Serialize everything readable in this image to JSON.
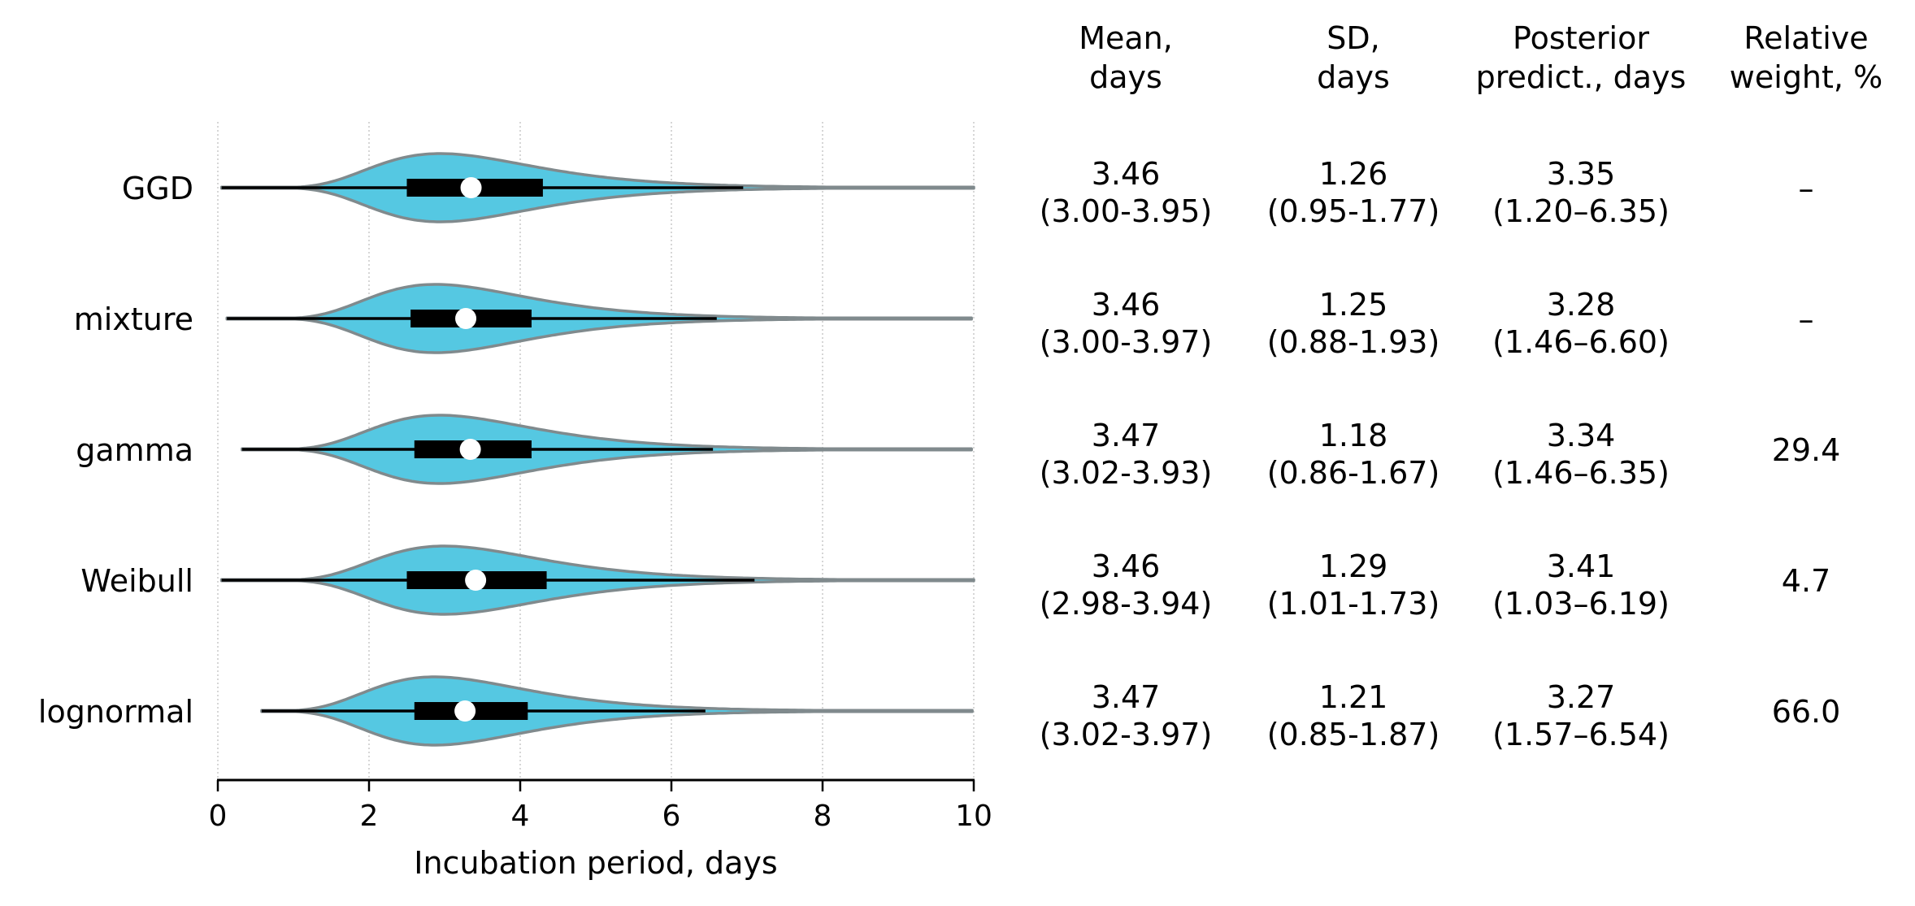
{
  "chart_data": {
    "type": "violin",
    "xlabel": "Incubation period, days",
    "xlim": [
      0,
      10
    ],
    "xticks": [
      0,
      2,
      4,
      6,
      8,
      10
    ],
    "xtick_labels": [
      "0",
      "2",
      "4",
      "6",
      "8",
      "10"
    ],
    "grid": "vertical dotted at x ticks",
    "violin_color": "#55c8e2",
    "violin_edge_color": "#808a8d",
    "box_color": "#000000",
    "median_color": "#ffffff",
    "models": [
      {
        "name": "GGD",
        "min": 0.05,
        "q1": 2.5,
        "median": 3.35,
        "q3": 4.3,
        "whisker_high": 6.95
      },
      {
        "name": "mixture",
        "min": 0.12,
        "q1": 2.55,
        "median": 3.28,
        "q3": 4.15,
        "whisker_high": 6.6
      },
      {
        "name": "gamma",
        "min": 0.32,
        "q1": 2.6,
        "median": 3.34,
        "q3": 4.15,
        "whisker_high": 6.55
      },
      {
        "name": "Weibull",
        "min": 0.05,
        "q1": 2.5,
        "median": 3.41,
        "q3": 4.35,
        "whisker_high": 7.1
      },
      {
        "name": "lognormal",
        "min": 0.58,
        "q1": 2.6,
        "median": 3.27,
        "q3": 4.1,
        "whisker_high": 6.45
      }
    ]
  },
  "table": {
    "headers": [
      [
        "Mean,",
        "days"
      ],
      [
        "SD,",
        "days"
      ],
      [
        "Posterior",
        "predict., days"
      ],
      [
        "Relative",
        "weight, %"
      ]
    ],
    "rows": [
      {
        "model": "GGD",
        "mean": "3.46",
        "mean_ci": "(3.00-3.95)",
        "sd": "1.26",
        "sd_ci": "(0.95-1.77)",
        "pred": "3.35",
        "pred_ci": "(1.20–6.35)",
        "weight": "–"
      },
      {
        "model": "mixture",
        "mean": "3.46",
        "mean_ci": "(3.00-3.97)",
        "sd": "1.25",
        "sd_ci": "(0.88-1.93)",
        "pred": "3.28",
        "pred_ci": "(1.46–6.60)",
        "weight": "–"
      },
      {
        "model": "gamma",
        "mean": "3.47",
        "mean_ci": "(3.02-3.93)",
        "sd": "1.18",
        "sd_ci": "(0.86-1.67)",
        "pred": "3.34",
        "pred_ci": "(1.46–6.35)",
        "weight": "29.4"
      },
      {
        "model": "Weibull",
        "mean": "3.46",
        "mean_ci": "(2.98-3.94)",
        "sd": "1.29",
        "sd_ci": "(1.01-1.73)",
        "pred": "3.41",
        "pred_ci": "(1.03–6.19)",
        "weight": "4.7"
      },
      {
        "model": "lognormal",
        "mean": "3.47",
        "mean_ci": "(3.02-3.97)",
        "sd": "1.21",
        "sd_ci": "(0.85-1.87)",
        "pred": "3.27",
        "pred_ci": "(1.57–6.54)",
        "weight": "66.0"
      }
    ]
  }
}
